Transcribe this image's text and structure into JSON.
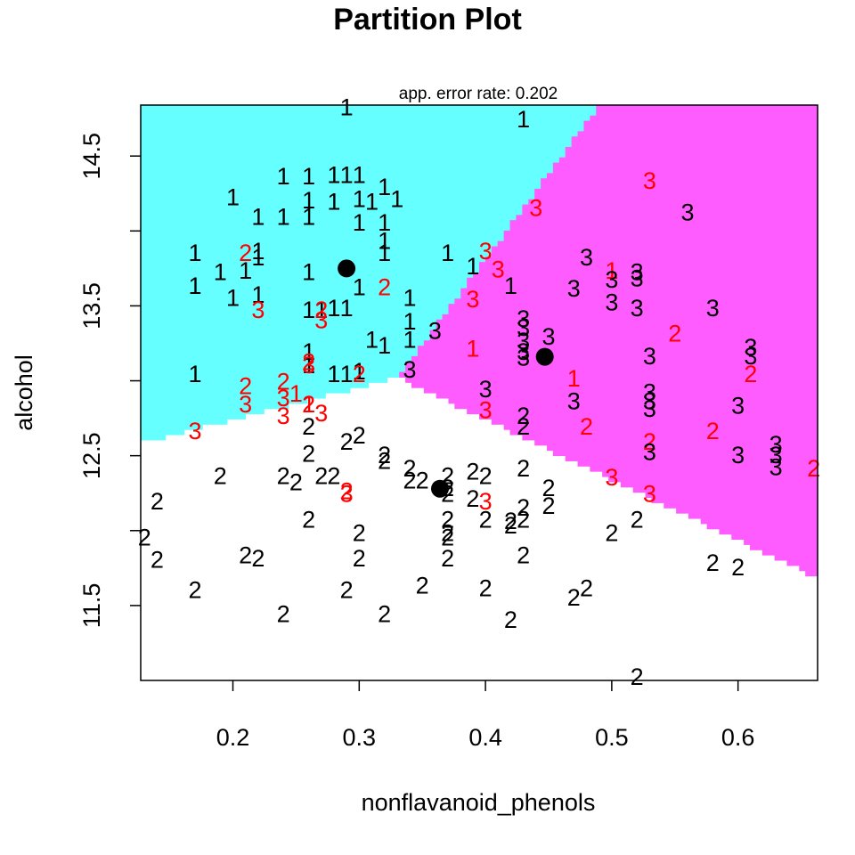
{
  "chart_data": {
    "type": "scatter",
    "title": "Partition Plot",
    "subtitle": "app. error rate: 0.202",
    "xlabel": "nonflavanoid_phenols",
    "ylabel": "alcohol",
    "xlim": [
      0.127,
      0.663
    ],
    "ylim": [
      11.0,
      14.84
    ],
    "x_ticks": [
      0.2,
      0.3,
      0.4,
      0.5,
      0.6
    ],
    "x_tick_labels": [
      "0.2",
      "0.3",
      "0.4",
      "0.5",
      "0.6"
    ],
    "y_ticks": [
      11.5,
      12.5,
      13.5,
      14.5
    ],
    "y_tick_labels": [
      "11.5",
      "12.5",
      "13.5",
      "14.5"
    ],
    "y_minor_ticks": [
      12.0,
      13.0,
      14.0
    ],
    "colors": {
      "region_1": "#66FFFF",
      "region_2": "#FFFFFF",
      "region_3": "#FF5CFF",
      "correct_point": "#000000",
      "misclassified_point": "#FF0000",
      "centroid": "#000000"
    },
    "centroids": [
      {
        "class": "1",
        "x": 0.29,
        "y": 13.75
      },
      {
        "class": "2",
        "x": 0.364,
        "y": 12.28
      },
      {
        "class": "3",
        "x": 0.447,
        "y": 13.16
      }
    ],
    "points": [
      {
        "x": 0.29,
        "y": 14.83,
        "label": "1",
        "color": "black"
      },
      {
        "x": 0.43,
        "y": 14.75,
        "label": "1",
        "color": "black"
      },
      {
        "x": 0.28,
        "y": 14.38,
        "label": "1",
        "color": "black"
      },
      {
        "x": 0.29,
        "y": 14.38,
        "label": "1",
        "color": "black"
      },
      {
        "x": 0.3,
        "y": 14.38,
        "label": "1",
        "color": "black"
      },
      {
        "x": 0.26,
        "y": 14.37,
        "label": "1",
        "color": "black"
      },
      {
        "x": 0.24,
        "y": 14.37,
        "label": "1",
        "color": "black"
      },
      {
        "x": 0.32,
        "y": 14.3,
        "label": "1",
        "color": "black"
      },
      {
        "x": 0.3,
        "y": 14.22,
        "label": "1",
        "color": "black"
      },
      {
        "x": 0.28,
        "y": 14.2,
        "label": "1",
        "color": "black"
      },
      {
        "x": 0.26,
        "y": 14.21,
        "label": "1",
        "color": "black"
      },
      {
        "x": 0.2,
        "y": 14.23,
        "label": "1",
        "color": "black"
      },
      {
        "x": 0.33,
        "y": 14.22,
        "label": "1",
        "color": "black"
      },
      {
        "x": 0.31,
        "y": 14.2,
        "label": "1",
        "color": "black"
      },
      {
        "x": 0.22,
        "y": 14.1,
        "label": "1",
        "color": "black"
      },
      {
        "x": 0.24,
        "y": 14.1,
        "label": "1",
        "color": "black"
      },
      {
        "x": 0.26,
        "y": 14.1,
        "label": "1",
        "color": "black"
      },
      {
        "x": 0.3,
        "y": 14.06,
        "label": "1",
        "color": "black"
      },
      {
        "x": 0.32,
        "y": 14.06,
        "label": "1",
        "color": "black"
      },
      {
        "x": 0.32,
        "y": 13.94,
        "label": "1",
        "color": "black"
      },
      {
        "x": 0.17,
        "y": 13.86,
        "label": "1",
        "color": "black"
      },
      {
        "x": 0.22,
        "y": 13.87,
        "label": "1",
        "color": "black"
      },
      {
        "x": 0.32,
        "y": 13.86,
        "label": "1",
        "color": "black"
      },
      {
        "x": 0.37,
        "y": 13.86,
        "label": "1",
        "color": "black"
      },
      {
        "x": 0.22,
        "y": 13.83,
        "label": "1",
        "color": "black"
      },
      {
        "x": 0.39,
        "y": 13.77,
        "label": "1",
        "color": "black"
      },
      {
        "x": 0.19,
        "y": 13.73,
        "label": "1",
        "color": "black"
      },
      {
        "x": 0.21,
        "y": 13.74,
        "label": "1",
        "color": "black"
      },
      {
        "x": 0.26,
        "y": 13.73,
        "label": "1",
        "color": "black"
      },
      {
        "x": 0.17,
        "y": 13.64,
        "label": "1",
        "color": "black"
      },
      {
        "x": 0.3,
        "y": 13.63,
        "label": "1",
        "color": "black"
      },
      {
        "x": 0.42,
        "y": 13.64,
        "label": "1",
        "color": "black"
      },
      {
        "x": 0.2,
        "y": 13.56,
        "label": "1",
        "color": "black"
      },
      {
        "x": 0.22,
        "y": 13.58,
        "label": "1",
        "color": "black"
      },
      {
        "x": 0.34,
        "y": 13.56,
        "label": "1",
        "color": "black"
      },
      {
        "x": 0.26,
        "y": 13.48,
        "label": "1",
        "color": "black"
      },
      {
        "x": 0.28,
        "y": 13.49,
        "label": "1",
        "color": "black"
      },
      {
        "x": 0.29,
        "y": 13.49,
        "label": "1",
        "color": "black"
      },
      {
        "x": 0.27,
        "y": 13.48,
        "label": "1",
        "color": "black"
      },
      {
        "x": 0.34,
        "y": 13.4,
        "label": "1",
        "color": "black"
      },
      {
        "x": 0.31,
        "y": 13.28,
        "label": "1",
        "color": "black"
      },
      {
        "x": 0.32,
        "y": 13.24,
        "label": "1",
        "color": "black"
      },
      {
        "x": 0.34,
        "y": 13.28,
        "label": "1",
        "color": "black"
      },
      {
        "x": 0.26,
        "y": 13.2,
        "label": "1",
        "color": "black"
      },
      {
        "x": 0.26,
        "y": 13.11,
        "label": "1",
        "color": "black"
      },
      {
        "x": 0.17,
        "y": 13.05,
        "label": "1",
        "color": "black"
      },
      {
        "x": 0.28,
        "y": 13.05,
        "label": "1",
        "color": "black"
      },
      {
        "x": 0.29,
        "y": 13.05,
        "label": "1",
        "color": "black"
      },
      {
        "x": 0.3,
        "y": 13.07,
        "label": "1",
        "color": "black"
      },
      {
        "x": 0.21,
        "y": 13.86,
        "label": "2",
        "color": "red"
      },
      {
        "x": 0.32,
        "y": 13.63,
        "label": "2",
        "color": "red"
      },
      {
        "x": 0.27,
        "y": 13.48,
        "label": "2",
        "color": "red"
      },
      {
        "x": 0.26,
        "y": 13.13,
        "label": "2",
        "color": "red"
      },
      {
        "x": 0.3,
        "y": 13.05,
        "label": "2",
        "color": "red"
      },
      {
        "x": 0.21,
        "y": 12.97,
        "label": "2",
        "color": "red"
      },
      {
        "x": 0.24,
        "y": 13.0,
        "label": "2",
        "color": "red"
      },
      {
        "x": 0.26,
        "y": 12.85,
        "label": "2",
        "color": "red"
      },
      {
        "x": 0.55,
        "y": 13.32,
        "label": "2",
        "color": "red"
      },
      {
        "x": 0.61,
        "y": 13.05,
        "label": "2",
        "color": "red"
      },
      {
        "x": 0.48,
        "y": 12.7,
        "label": "2",
        "color": "red"
      },
      {
        "x": 0.53,
        "y": 12.6,
        "label": "2",
        "color": "red"
      },
      {
        "x": 0.58,
        "y": 12.67,
        "label": "2",
        "color": "red"
      },
      {
        "x": 0.66,
        "y": 12.42,
        "label": "2",
        "color": "red"
      },
      {
        "x": 0.29,
        "y": 12.27,
        "label": "2",
        "color": "red"
      },
      {
        "x": 0.22,
        "y": 13.48,
        "label": "3",
        "color": "red"
      },
      {
        "x": 0.27,
        "y": 13.41,
        "label": "3",
        "color": "red"
      },
      {
        "x": 0.44,
        "y": 14.16,
        "label": "3",
        "color": "red"
      },
      {
        "x": 0.53,
        "y": 14.34,
        "label": "3",
        "color": "red"
      },
      {
        "x": 0.4,
        "y": 13.87,
        "label": "3",
        "color": "red"
      },
      {
        "x": 0.41,
        "y": 13.75,
        "label": "3",
        "color": "red"
      },
      {
        "x": 0.39,
        "y": 13.55,
        "label": "3",
        "color": "red"
      },
      {
        "x": 0.26,
        "y": 13.11,
        "label": "3",
        "color": "red"
      },
      {
        "x": 0.21,
        "y": 12.85,
        "label": "3",
        "color": "red"
      },
      {
        "x": 0.24,
        "y": 12.89,
        "label": "3",
        "color": "red"
      },
      {
        "x": 0.24,
        "y": 12.77,
        "label": "3",
        "color": "red"
      },
      {
        "x": 0.27,
        "y": 12.79,
        "label": "3",
        "color": "red"
      },
      {
        "x": 0.17,
        "y": 12.67,
        "label": "3",
        "color": "red"
      },
      {
        "x": 0.4,
        "y": 12.81,
        "label": "3",
        "color": "red"
      },
      {
        "x": 0.4,
        "y": 12.2,
        "label": "3",
        "color": "red"
      },
      {
        "x": 0.29,
        "y": 12.25,
        "label": "3",
        "color": "red"
      },
      {
        "x": 0.5,
        "y": 12.36,
        "label": "3",
        "color": "red"
      },
      {
        "x": 0.53,
        "y": 12.25,
        "label": "3",
        "color": "red"
      },
      {
        "x": 0.39,
        "y": 13.22,
        "label": "1",
        "color": "red"
      },
      {
        "x": 0.5,
        "y": 13.74,
        "label": "1",
        "color": "red"
      },
      {
        "x": 0.47,
        "y": 13.02,
        "label": "1",
        "color": "red"
      },
      {
        "x": 0.25,
        "y": 12.92,
        "label": "1",
        "color": "red"
      },
      {
        "x": 0.26,
        "y": 12.85,
        "label": "1",
        "color": "red"
      },
      {
        "x": 0.56,
        "y": 14.13,
        "label": "3",
        "color": "black"
      },
      {
        "x": 0.48,
        "y": 13.83,
        "label": "3",
        "color": "black"
      },
      {
        "x": 0.52,
        "y": 13.73,
        "label": "3",
        "color": "black"
      },
      {
        "x": 0.52,
        "y": 13.69,
        "label": "3",
        "color": "black"
      },
      {
        "x": 0.5,
        "y": 13.68,
        "label": "3",
        "color": "black"
      },
      {
        "x": 0.47,
        "y": 13.62,
        "label": "3",
        "color": "black"
      },
      {
        "x": 0.5,
        "y": 13.53,
        "label": "3",
        "color": "black"
      },
      {
        "x": 0.52,
        "y": 13.49,
        "label": "3",
        "color": "black"
      },
      {
        "x": 0.58,
        "y": 13.49,
        "label": "3",
        "color": "black"
      },
      {
        "x": 0.43,
        "y": 13.42,
        "label": "3",
        "color": "black"
      },
      {
        "x": 0.43,
        "y": 13.36,
        "label": "3",
        "color": "black"
      },
      {
        "x": 0.36,
        "y": 13.34,
        "label": "3",
        "color": "black"
      },
      {
        "x": 0.45,
        "y": 13.3,
        "label": "3",
        "color": "black"
      },
      {
        "x": 0.43,
        "y": 13.27,
        "label": "3",
        "color": "black"
      },
      {
        "x": 0.43,
        "y": 13.2,
        "label": "3",
        "color": "black"
      },
      {
        "x": 0.61,
        "y": 13.23,
        "label": "3",
        "color": "black"
      },
      {
        "x": 0.61,
        "y": 13.17,
        "label": "3",
        "color": "black"
      },
      {
        "x": 0.43,
        "y": 13.16,
        "label": "3",
        "color": "black"
      },
      {
        "x": 0.53,
        "y": 13.17,
        "label": "3",
        "color": "black"
      },
      {
        "x": 0.34,
        "y": 13.08,
        "label": "3",
        "color": "black"
      },
      {
        "x": 0.4,
        "y": 12.95,
        "label": "3",
        "color": "black"
      },
      {
        "x": 0.53,
        "y": 12.93,
        "label": "3",
        "color": "black"
      },
      {
        "x": 0.47,
        "y": 12.87,
        "label": "3",
        "color": "black"
      },
      {
        "x": 0.53,
        "y": 12.87,
        "label": "3",
        "color": "black"
      },
      {
        "x": 0.53,
        "y": 12.82,
        "label": "3",
        "color": "black"
      },
      {
        "x": 0.6,
        "y": 12.84,
        "label": "3",
        "color": "black"
      },
      {
        "x": 0.63,
        "y": 12.58,
        "label": "3",
        "color": "black"
      },
      {
        "x": 0.53,
        "y": 12.53,
        "label": "3",
        "color": "black"
      },
      {
        "x": 0.63,
        "y": 12.51,
        "label": "3",
        "color": "black"
      },
      {
        "x": 0.6,
        "y": 12.51,
        "label": "3",
        "color": "black"
      },
      {
        "x": 0.63,
        "y": 12.43,
        "label": "3",
        "color": "black"
      },
      {
        "x": 0.43,
        "y": 12.77,
        "label": "2",
        "color": "black"
      },
      {
        "x": 0.43,
        "y": 12.7,
        "label": "2",
        "color": "black"
      },
      {
        "x": 0.26,
        "y": 12.7,
        "label": "2",
        "color": "black"
      },
      {
        "x": 0.3,
        "y": 12.64,
        "label": "2",
        "color": "black"
      },
      {
        "x": 0.29,
        "y": 12.6,
        "label": "2",
        "color": "black"
      },
      {
        "x": 0.26,
        "y": 12.52,
        "label": "2",
        "color": "black"
      },
      {
        "x": 0.32,
        "y": 12.51,
        "label": "2",
        "color": "black"
      },
      {
        "x": 0.32,
        "y": 12.47,
        "label": "2",
        "color": "black"
      },
      {
        "x": 0.43,
        "y": 12.42,
        "label": "2",
        "color": "black"
      },
      {
        "x": 0.34,
        "y": 12.42,
        "label": "2",
        "color": "black"
      },
      {
        "x": 0.19,
        "y": 12.37,
        "label": "2",
        "color": "black"
      },
      {
        "x": 0.24,
        "y": 12.37,
        "label": "2",
        "color": "black"
      },
      {
        "x": 0.27,
        "y": 12.37,
        "label": "2",
        "color": "black"
      },
      {
        "x": 0.28,
        "y": 12.37,
        "label": "2",
        "color": "black"
      },
      {
        "x": 0.37,
        "y": 12.37,
        "label": "2",
        "color": "black"
      },
      {
        "x": 0.39,
        "y": 12.4,
        "label": "2",
        "color": "black"
      },
      {
        "x": 0.4,
        "y": 12.37,
        "label": "2",
        "color": "black"
      },
      {
        "x": 0.34,
        "y": 12.34,
        "label": "2",
        "color": "black"
      },
      {
        "x": 0.35,
        "y": 12.34,
        "label": "2",
        "color": "black"
      },
      {
        "x": 0.25,
        "y": 12.33,
        "label": "2",
        "color": "black"
      },
      {
        "x": 0.37,
        "y": 12.29,
        "label": "2",
        "color": "black"
      },
      {
        "x": 0.45,
        "y": 12.29,
        "label": "2",
        "color": "black"
      },
      {
        "x": 0.37,
        "y": 12.25,
        "label": "2",
        "color": "black"
      },
      {
        "x": 0.39,
        "y": 12.22,
        "label": "2",
        "color": "black"
      },
      {
        "x": 0.14,
        "y": 12.2,
        "label": "2",
        "color": "black"
      },
      {
        "x": 0.43,
        "y": 12.16,
        "label": "2",
        "color": "black"
      },
      {
        "x": 0.45,
        "y": 12.17,
        "label": "2",
        "color": "black"
      },
      {
        "x": 0.26,
        "y": 12.08,
        "label": "2",
        "color": "black"
      },
      {
        "x": 0.37,
        "y": 12.08,
        "label": "2",
        "color": "black"
      },
      {
        "x": 0.4,
        "y": 12.08,
        "label": "2",
        "color": "black"
      },
      {
        "x": 0.42,
        "y": 12.07,
        "label": "2",
        "color": "black"
      },
      {
        "x": 0.43,
        "y": 12.08,
        "label": "2",
        "color": "black"
      },
      {
        "x": 0.42,
        "y": 12.04,
        "label": "2",
        "color": "black"
      },
      {
        "x": 0.52,
        "y": 12.08,
        "label": "2",
        "color": "black"
      },
      {
        "x": 0.3,
        "y": 11.99,
        "label": "2",
        "color": "black"
      },
      {
        "x": 0.37,
        "y": 11.99,
        "label": "2",
        "color": "black"
      },
      {
        "x": 0.37,
        "y": 11.96,
        "label": "2",
        "color": "black"
      },
      {
        "x": 0.5,
        "y": 11.99,
        "label": "2",
        "color": "black"
      },
      {
        "x": 0.13,
        "y": 11.96,
        "label": "2",
        "color": "black"
      },
      {
        "x": 0.21,
        "y": 11.84,
        "label": "2",
        "color": "black"
      },
      {
        "x": 0.22,
        "y": 11.82,
        "label": "2",
        "color": "black"
      },
      {
        "x": 0.3,
        "y": 11.82,
        "label": "2",
        "color": "black"
      },
      {
        "x": 0.37,
        "y": 11.82,
        "label": "2",
        "color": "black"
      },
      {
        "x": 0.43,
        "y": 11.84,
        "label": "2",
        "color": "black"
      },
      {
        "x": 0.14,
        "y": 11.81,
        "label": "2",
        "color": "black"
      },
      {
        "x": 0.58,
        "y": 11.79,
        "label": "2",
        "color": "black"
      },
      {
        "x": 0.6,
        "y": 11.76,
        "label": "2",
        "color": "black"
      },
      {
        "x": 0.17,
        "y": 11.61,
        "label": "2",
        "color": "black"
      },
      {
        "x": 0.29,
        "y": 11.61,
        "label": "2",
        "color": "black"
      },
      {
        "x": 0.35,
        "y": 11.64,
        "label": "2",
        "color": "black"
      },
      {
        "x": 0.4,
        "y": 11.62,
        "label": "2",
        "color": "black"
      },
      {
        "x": 0.48,
        "y": 11.62,
        "label": "2",
        "color": "black"
      },
      {
        "x": 0.47,
        "y": 11.56,
        "label": "2",
        "color": "black"
      },
      {
        "x": 0.24,
        "y": 11.45,
        "label": "2",
        "color": "black"
      },
      {
        "x": 0.32,
        "y": 11.45,
        "label": "2",
        "color": "black"
      },
      {
        "x": 0.42,
        "y": 11.41,
        "label": "2",
        "color": "black"
      },
      {
        "x": 0.52,
        "y": 11.03,
        "label": "2",
        "color": "black"
      }
    ]
  }
}
